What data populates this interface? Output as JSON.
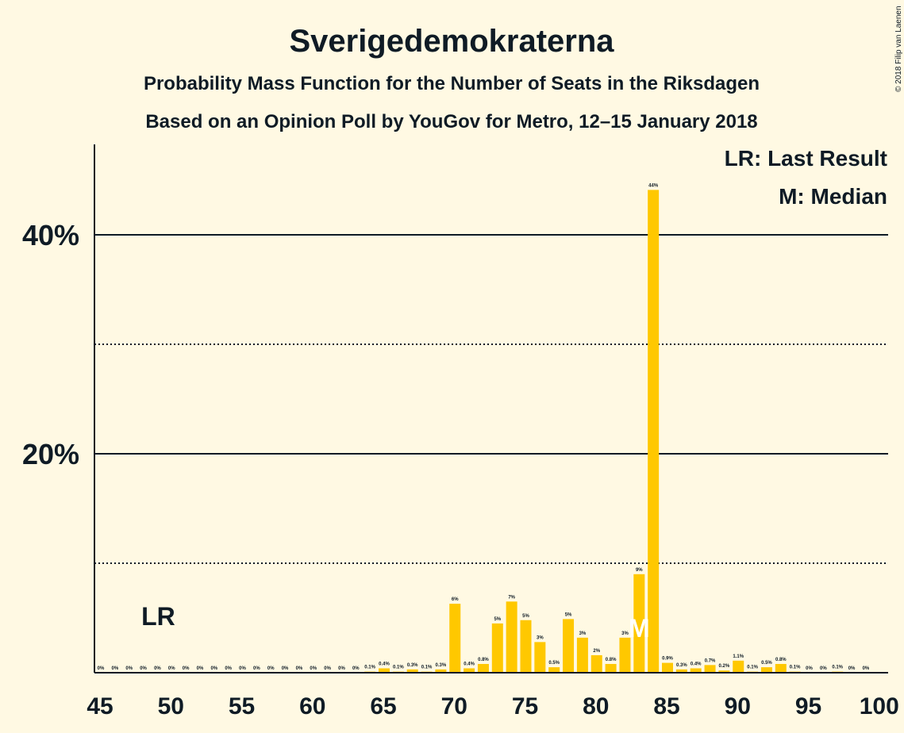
{
  "chart_data": {
    "type": "bar",
    "title": "Sverigedemokraterna",
    "subtitle1": "Probability Mass Function for the Number of Seats in the Riksdagen",
    "subtitle2": "Based on an Opinion Poll by YouGov for Metro, 12–15 January 2018",
    "copyright": "© 2018 Filip van Laenen",
    "legend": {
      "lr": "LR: Last Result",
      "median": "M: Median",
      "position": "top-right"
    },
    "ylim": [
      0,
      48
    ],
    "xlim": [
      45,
      100
    ],
    "x_ticks": [
      45,
      50,
      55,
      60,
      65,
      70,
      75,
      80,
      85,
      90,
      95,
      100
    ],
    "x_tick_labels": [
      "45",
      "50",
      "55",
      "60",
      "65",
      "70",
      "75",
      "80",
      "85",
      "90",
      "95",
      "100"
    ],
    "y_ticks": [
      20,
      40
    ],
    "y_tick_labels": [
      "20%",
      "40%"
    ],
    "y_solid_gridlines": [
      20,
      40
    ],
    "y_dotted_gridlines": [
      10,
      30
    ],
    "bar_color": "#FFC800",
    "seats": [
      45,
      46,
      47,
      48,
      49,
      50,
      51,
      52,
      53,
      54,
      55,
      56,
      57,
      58,
      59,
      60,
      61,
      62,
      63,
      64,
      65,
      66,
      67,
      68,
      69,
      70,
      71,
      72,
      73,
      74,
      75,
      76,
      77,
      78,
      79,
      80,
      81,
      82,
      83,
      84,
      85,
      86,
      87,
      88,
      89,
      90,
      91,
      92,
      93,
      94,
      95,
      96,
      97,
      98,
      99
    ],
    "values": [
      0,
      0,
      0,
      0,
      0,
      0,
      0,
      0,
      0,
      0,
      0,
      0,
      0,
      0,
      0,
      0,
      0,
      0,
      0,
      0.1,
      0.4,
      0.1,
      0.3,
      0.1,
      0.3,
      6.3,
      0.4,
      0.8,
      4.5,
      6.5,
      4.8,
      2.8,
      0.5,
      4.9,
      3.2,
      1.6,
      0.8,
      3.2,
      9.0,
      44.1,
      0.9,
      0.3,
      0.4,
      0.7,
      0.2,
      1.1,
      0.1,
      0.5,
      0.8,
      0.1,
      0,
      0,
      0.1,
      0,
      0
    ],
    "labels": [
      "0%",
      "0%",
      "0%",
      "0%",
      "0%",
      "0%",
      "0%",
      "0%",
      "0%",
      "0%",
      "0%",
      "0%",
      "0%",
      "0%",
      "0%",
      "0%",
      "0%",
      "0%",
      "0%",
      "0.1%",
      "0.4%",
      "0.1%",
      "0.3%",
      "0.1%",
      "0.3%",
      "6%",
      "0.4%",
      "0.8%",
      "5%",
      "7%",
      "5%",
      "3%",
      "0.5%",
      "5%",
      "3%",
      "2%",
      "0.8%",
      "3%",
      "9%",
      "44%",
      "0.9%",
      "0.3%",
      "0.4%",
      "0.7%",
      "0.2%",
      "1.1%",
      "0.1%",
      "0.5%",
      "0.8%",
      "0.1%",
      "0%",
      "0%",
      "0.1%",
      "0%",
      "0%"
    ],
    "last_result": {
      "seat": 49,
      "label": "LR"
    },
    "median": {
      "seat": 83,
      "label": "M"
    }
  }
}
